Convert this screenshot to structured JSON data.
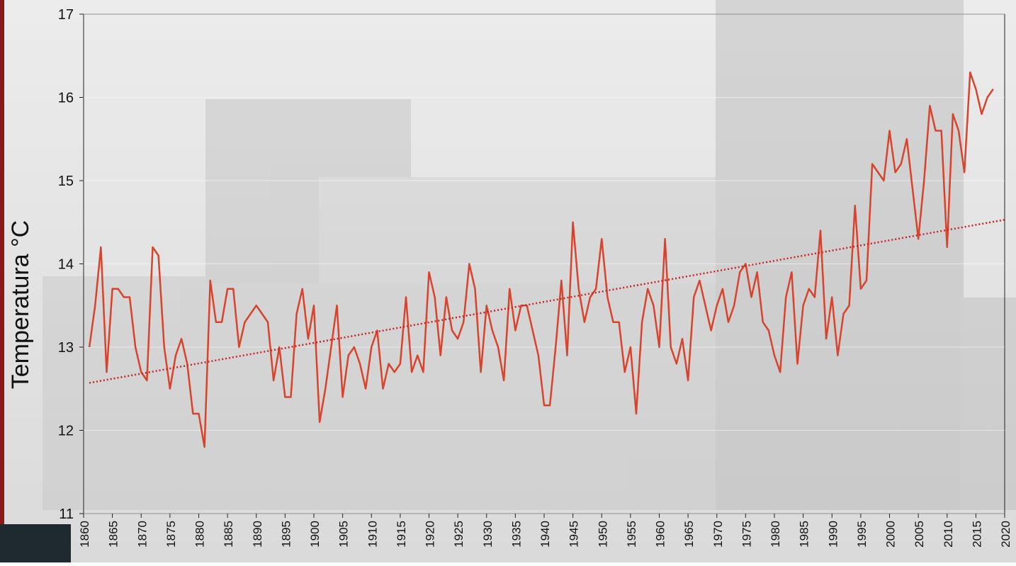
{
  "chart_data": {
    "type": "line",
    "y_label": "Temperatura °C",
    "xlim": [
      1860,
      2020
    ],
    "xticks": [
      1860,
      1865,
      1870,
      1875,
      1880,
      1885,
      1890,
      1895,
      1900,
      1905,
      1910,
      1915,
      1920,
      1925,
      1930,
      1935,
      1940,
      1945,
      1950,
      1955,
      1960,
      1965,
      1970,
      1975,
      1980,
      1985,
      1990,
      1995,
      2000,
      2005,
      2010,
      2015,
      2020
    ],
    "ylim": [
      11,
      17
    ],
    "yticks": [
      11,
      12,
      13,
      14,
      15,
      16,
      17
    ],
    "grid": true,
    "x": [
      1861,
      1862,
      1863,
      1864,
      1865,
      1866,
      1867,
      1868,
      1869,
      1870,
      1871,
      1872,
      1873,
      1874,
      1875,
      1876,
      1877,
      1878,
      1879,
      1880,
      1881,
      1882,
      1883,
      1884,
      1885,
      1886,
      1887,
      1888,
      1889,
      1890,
      1891,
      1892,
      1893,
      1894,
      1895,
      1896,
      1897,
      1898,
      1899,
      1900,
      1901,
      1902,
      1903,
      1904,
      1905,
      1906,
      1907,
      1908,
      1909,
      1910,
      1911,
      1912,
      1913,
      1914,
      1915,
      1916,
      1917,
      1918,
      1919,
      1920,
      1921,
      1922,
      1923,
      1924,
      1925,
      1926,
      1927,
      1928,
      1929,
      1930,
      1931,
      1932,
      1933,
      1934,
      1935,
      1936,
      1937,
      1938,
      1939,
      1940,
      1941,
      1942,
      1943,
      1944,
      1945,
      1946,
      1947,
      1948,
      1949,
      1950,
      1951,
      1952,
      1953,
      1954,
      1955,
      1956,
      1957,
      1958,
      1959,
      1960,
      1961,
      1962,
      1963,
      1964,
      1965,
      1966,
      1967,
      1968,
      1969,
      1970,
      1971,
      1972,
      1973,
      1974,
      1975,
      1976,
      1977,
      1978,
      1979,
      1980,
      1981,
      1982,
      1983,
      1984,
      1985,
      1986,
      1987,
      1988,
      1989,
      1990,
      1991,
      1992,
      1993,
      1994,
      1995,
      1996,
      1997,
      1998,
      1999,
      2000,
      2001,
      2002,
      2003,
      2004,
      2005,
      2006,
      2007,
      2008,
      2009,
      2010,
      2011,
      2012,
      2013,
      2014,
      2015,
      2016,
      2017,
      2018
    ],
    "series": [
      {
        "color": "#d9432b",
        "values": [
          13.0,
          13.5,
          14.2,
          12.7,
          13.7,
          13.7,
          13.6,
          13.6,
          13.0,
          12.7,
          12.6,
          14.2,
          14.1,
          13.0,
          12.5,
          12.9,
          13.1,
          12.8,
          12.2,
          12.2,
          11.8,
          13.8,
          13.3,
          13.3,
          13.7,
          13.7,
          13.0,
          13.3,
          13.4,
          13.5,
          13.4,
          13.3,
          12.6,
          13.0,
          12.4,
          12.4,
          13.4,
          13.7,
          13.1,
          13.5,
          12.1,
          12.5,
          13.0,
          13.5,
          12.4,
          12.9,
          13.0,
          12.8,
          12.5,
          13.0,
          13.2,
          12.5,
          12.8,
          12.7,
          12.8,
          13.6,
          12.7,
          12.9,
          12.7,
          13.9,
          13.6,
          12.9,
          13.6,
          13.2,
          13.1,
          13.3,
          14.0,
          13.7,
          12.7,
          13.5,
          13.2,
          13.0,
          12.6,
          13.7,
          13.2,
          13.5,
          13.5,
          13.2,
          12.9,
          12.3,
          12.3,
          13.0,
          13.8,
          12.9,
          14.5,
          13.7,
          13.3,
          13.6,
          13.7,
          14.3,
          13.6,
          13.3,
          13.3,
          12.7,
          13.0,
          12.2,
          13.3,
          13.7,
          13.5,
          13.0,
          14.3,
          13.0,
          12.8,
          13.1,
          12.6,
          13.6,
          13.8,
          13.5,
          13.2,
          13.5,
          13.7,
          13.3,
          13.5,
          13.9,
          14.0,
          13.6,
          13.9,
          13.3,
          13.2,
          12.9,
          12.7,
          13.6,
          13.9,
          12.8,
          13.5,
          13.7,
          13.6,
          14.4,
          13.1,
          13.6,
          12.9,
          13.4,
          13.5,
          14.7,
          13.7,
          13.8,
          15.2,
          15.1,
          15.0,
          15.6,
          15.1,
          15.2,
          15.5,
          14.9,
          14.3,
          15.0,
          15.9,
          15.6,
          15.6,
          14.2,
          15.8,
          15.6,
          15.1,
          16.3,
          16.1,
          15.8,
          16.0,
          16.1
        ]
      }
    ],
    "trend": {
      "color": "#cc2222",
      "x": [
        1861,
        2020
      ],
      "values": [
        12.57,
        14.53
      ]
    }
  }
}
